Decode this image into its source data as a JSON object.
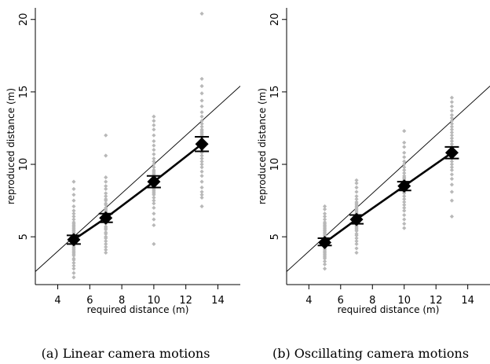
{
  "chart_data": [
    {
      "type": "scatter",
      "panel": "a",
      "caption": "(a) Linear camera motions",
      "xlabel": "required distance (m)",
      "ylabel": "reproduced distance (m)",
      "xlim": [
        2.6,
        15.4
      ],
      "ylim": [
        1.7,
        20.8
      ],
      "xticks": [
        4,
        6,
        8,
        10,
        12,
        14
      ],
      "yticks": [
        5,
        10,
        15,
        20
      ],
      "reference_line": {
        "slope": 1,
        "intercept": 0
      },
      "means": {
        "x": [
          5,
          7,
          10,
          13
        ],
        "y": [
          4.8,
          6.3,
          8.8,
          11.4
        ],
        "error_low": [
          4.5,
          6.0,
          8.4,
          10.9
        ],
        "error_high": [
          5.1,
          6.6,
          9.2,
          11.9
        ]
      },
      "points": [
        {
          "x": 5,
          "y": [
            2.2,
            2.5,
            2.8,
            3.0,
            3.2,
            3.4,
            3.5,
            3.7,
            3.8,
            3.9,
            4.0,
            4.1,
            4.2,
            4.3,
            4.4,
            4.5,
            4.6,
            4.7,
            4.8,
            4.9,
            5.0,
            5.1,
            5.2,
            5.3,
            5.4,
            5.5,
            5.6,
            5.7,
            5.8,
            5.9,
            6.0,
            6.2,
            6.4,
            6.6,
            6.8,
            7.1,
            7.5,
            7.9,
            8.3,
            8.8
          ]
        },
        {
          "x": 7,
          "y": [
            3.9,
            4.1,
            4.3,
            4.5,
            4.7,
            4.9,
            5.0,
            5.2,
            5.3,
            5.5,
            5.6,
            5.7,
            5.9,
            6.0,
            6.1,
            6.2,
            6.3,
            6.4,
            6.5,
            6.6,
            6.7,
            6.8,
            6.9,
            7.0,
            7.2,
            7.3,
            7.5,
            7.6,
            7.8,
            8.0,
            8.3,
            8.5,
            8.8,
            9.1,
            10.6,
            12.0
          ]
        },
        {
          "x": 10,
          "y": [
            4.5,
            5.8,
            6.2,
            6.6,
            7.0,
            7.3,
            7.5,
            7.7,
            7.9,
            8.0,
            8.1,
            8.2,
            8.3,
            8.4,
            8.5,
            8.6,
            8.7,
            8.8,
            8.9,
            9.0,
            9.1,
            9.2,
            9.3,
            9.4,
            9.5,
            9.6,
            9.8,
            10.0,
            10.2,
            10.4,
            10.7,
            11.0,
            11.3,
            11.6,
            12.0,
            12.4,
            12.7,
            13.0,
            13.3
          ]
        },
        {
          "x": 13,
          "y": [
            7.1,
            7.7,
            7.9,
            8.1,
            8.4,
            8.8,
            9.2,
            9.5,
            9.8,
            10.0,
            10.2,
            10.4,
            10.6,
            10.8,
            11.0,
            11.1,
            11.2,
            11.3,
            11.4,
            11.5,
            11.6,
            11.7,
            11.8,
            11.9,
            12.0,
            12.1,
            12.2,
            12.3,
            12.4,
            12.6,
            12.8,
            13.0,
            13.3,
            13.6,
            14.0,
            14.4,
            14.9,
            15.4,
            15.9,
            20.4
          ]
        }
      ]
    },
    {
      "type": "scatter",
      "panel": "b",
      "caption": "(b) Oscillating camera motions",
      "xlabel": "required distance (m)",
      "ylabel": "reproduced distance (m)",
      "xlim": [
        2.6,
        15.4
      ],
      "ylim": [
        1.7,
        20.8
      ],
      "xticks": [
        4,
        6,
        8,
        10,
        12,
        14
      ],
      "yticks": [
        5,
        10,
        15,
        20
      ],
      "reference_line": {
        "slope": 1,
        "intercept": 0
      },
      "means": {
        "x": [
          5,
          7,
          10,
          13
        ],
        "y": [
          4.6,
          6.2,
          8.5,
          10.8
        ],
        "error_low": [
          4.4,
          5.9,
          8.2,
          10.4
        ],
        "error_high": [
          4.9,
          6.5,
          8.8,
          11.2
        ]
      },
      "points": [
        {
          "x": 5,
          "y": [
            2.8,
            3.1,
            3.3,
            3.5,
            3.6,
            3.7,
            3.8,
            3.9,
            4.0,
            4.1,
            4.2,
            4.3,
            4.4,
            4.5,
            4.6,
            4.7,
            4.8,
            4.9,
            5.0,
            5.1,
            5.2,
            5.3,
            5.4,
            5.5,
            5.6,
            5.7,
            5.8,
            5.9,
            6.0,
            6.2,
            6.4,
            6.6,
            6.9,
            7.1
          ]
        },
        {
          "x": 7,
          "y": [
            3.9,
            4.2,
            4.5,
            4.7,
            4.9,
            5.1,
            5.2,
            5.4,
            5.5,
            5.6,
            5.7,
            5.8,
            5.9,
            6.0,
            6.1,
            6.2,
            6.3,
            6.4,
            6.5,
            6.6,
            6.7,
            6.8,
            6.9,
            7.0,
            7.1,
            7.2,
            7.3,
            7.4,
            7.6,
            7.8,
            8.1,
            8.4,
            8.7,
            8.9
          ]
        },
        {
          "x": 10,
          "y": [
            5.6,
            5.9,
            6.2,
            6.5,
            6.8,
            7.0,
            7.2,
            7.4,
            7.6,
            7.8,
            8.0,
            8.1,
            8.2,
            8.3,
            8.4,
            8.5,
            8.6,
            8.7,
            8.8,
            8.9,
            9.0,
            9.1,
            9.2,
            9.4,
            9.6,
            9.8,
            10.0,
            10.2,
            10.5,
            10.8,
            11.2,
            11.5,
            12.3
          ]
        },
        {
          "x": 13,
          "y": [
            6.4,
            7.5,
            8.1,
            8.6,
            9.0,
            9.3,
            9.6,
            9.8,
            10.0,
            10.2,
            10.4,
            10.6,
            10.8,
            11.0,
            11.2,
            11.4,
            11.6,
            11.8,
            12.0,
            12.2,
            12.4,
            12.6,
            12.8,
            13.0,
            13.2,
            13.4,
            13.7,
            14.0,
            14.3,
            14.6
          ]
        }
      ]
    }
  ],
  "colors": {
    "points": "#b8b8b8",
    "mean": "#000000",
    "reference_line": "#000000"
  }
}
